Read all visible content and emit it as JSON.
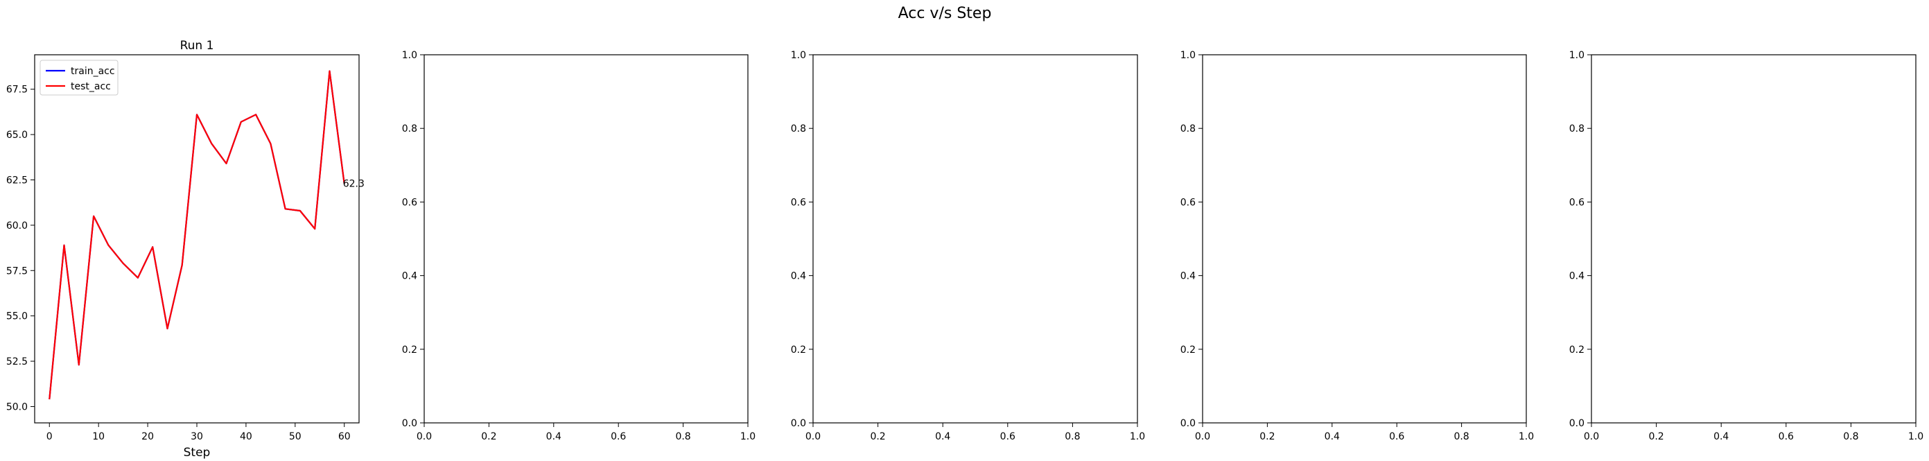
{
  "suptitle": "Acc v/s Step",
  "colors": {
    "train": "#0000ff",
    "test": "#ff0000"
  },
  "chart_data": [
    {
      "type": "line",
      "title": "Run 1",
      "xlabel": "Step",
      "ylabel": "",
      "xlim": [
        -3,
        63
      ],
      "ylim": [
        49.1,
        69.4
      ],
      "xticks": [
        0,
        10,
        20,
        30,
        40,
        50,
        60
      ],
      "xtick_labels": [
        "0",
        "10",
        "20",
        "30",
        "40",
        "50",
        "60"
      ],
      "yticks": [
        50.0,
        52.5,
        55.0,
        57.5,
        60.0,
        62.5,
        65.0,
        67.5
      ],
      "ytick_labels": [
        "50.0",
        "52.5",
        "55.0",
        "57.5",
        "60.0",
        "62.5",
        "65.0",
        "67.5"
      ],
      "legend": {
        "placement": "upper-left",
        "entries": [
          "train_acc",
          "test_acc"
        ]
      },
      "x": [
        0,
        3,
        6,
        9,
        12,
        15,
        18,
        21,
        24,
        27,
        30,
        33,
        36,
        39,
        42,
        45,
        48,
        51,
        54,
        57,
        60
      ],
      "series": [
        {
          "name": "train_acc",
          "color": "#0000ff",
          "values": [
            50.4,
            58.9,
            52.3,
            60.5,
            58.9,
            57.9,
            57.1,
            58.8,
            54.3,
            57.8,
            66.1,
            64.5,
            63.4,
            65.7,
            66.1,
            64.5,
            60.9,
            60.8,
            59.8,
            68.5,
            62.3
          ]
        },
        {
          "name": "test_acc",
          "color": "#ff0000",
          "values": [
            50.4,
            58.9,
            52.3,
            60.5,
            58.9,
            57.9,
            57.1,
            58.8,
            54.3,
            57.8,
            66.1,
            64.5,
            63.4,
            65.7,
            66.1,
            64.5,
            60.9,
            60.8,
            59.8,
            68.5,
            62.3
          ]
        }
      ],
      "annotations": [
        {
          "x": 60,
          "y": 62.3,
          "text": "62.3"
        }
      ]
    },
    {
      "type": "line",
      "title": "",
      "xlim": [
        0,
        1
      ],
      "ylim": [
        0,
        1
      ],
      "xticks": [
        0,
        0.2,
        0.4,
        0.6,
        0.8,
        1.0
      ],
      "xtick_labels": [
        "0.0",
        "0.2",
        "0.4",
        "0.6",
        "0.8",
        "1.0"
      ],
      "yticks": [
        0,
        0.2,
        0.4,
        0.6,
        0.8,
        1.0
      ],
      "ytick_labels": [
        "0.0",
        "0.2",
        "0.4",
        "0.6",
        "0.8",
        "1.0"
      ],
      "series": []
    },
    {
      "type": "line",
      "title": "",
      "xlim": [
        0,
        1
      ],
      "ylim": [
        0,
        1
      ],
      "xticks": [
        0,
        0.2,
        0.4,
        0.6,
        0.8,
        1.0
      ],
      "xtick_labels": [
        "0.0",
        "0.2",
        "0.4",
        "0.6",
        "0.8",
        "1.0"
      ],
      "yticks": [
        0,
        0.2,
        0.4,
        0.6,
        0.8,
        1.0
      ],
      "ytick_labels": [
        "0.0",
        "0.2",
        "0.4",
        "0.6",
        "0.8",
        "1.0"
      ],
      "series": []
    },
    {
      "type": "line",
      "title": "",
      "xlim": [
        0,
        1
      ],
      "ylim": [
        0,
        1
      ],
      "xticks": [
        0,
        0.2,
        0.4,
        0.6,
        0.8,
        1.0
      ],
      "xtick_labels": [
        "0.0",
        "0.2",
        "0.4",
        "0.6",
        "0.8",
        "1.0"
      ],
      "yticks": [
        0,
        0.2,
        0.4,
        0.6,
        0.8,
        1.0
      ],
      "ytick_labels": [
        "0.0",
        "0.2",
        "0.4",
        "0.6",
        "0.8",
        "1.0"
      ],
      "series": []
    },
    {
      "type": "line",
      "title": "",
      "xlim": [
        0,
        1
      ],
      "ylim": [
        0,
        1
      ],
      "xticks": [
        0,
        0.2,
        0.4,
        0.6,
        0.8,
        1.0
      ],
      "xtick_labels": [
        "0.0",
        "0.2",
        "0.4",
        "0.6",
        "0.8",
        "1.0"
      ],
      "yticks": [
        0,
        0.2,
        0.4,
        0.6,
        0.8,
        1.0
      ],
      "ytick_labels": [
        "0.0",
        "0.2",
        "0.4",
        "0.6",
        "0.8",
        "1.0"
      ],
      "series": []
    }
  ]
}
